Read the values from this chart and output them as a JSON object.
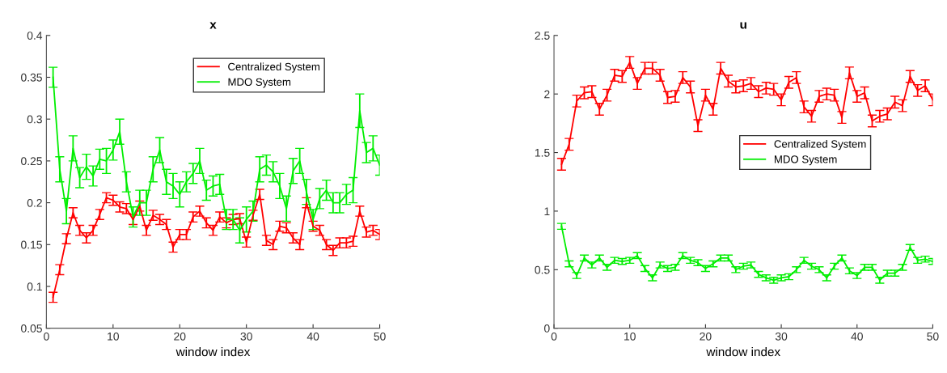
{
  "chart_data": [
    {
      "type": "line",
      "title": "x",
      "xlabel": "window index",
      "x": [
        1,
        2,
        3,
        4,
        5,
        6,
        7,
        8,
        9,
        10,
        11,
        12,
        13,
        14,
        15,
        16,
        17,
        18,
        19,
        20,
        21,
        22,
        23,
        24,
        25,
        26,
        27,
        28,
        29,
        30,
        31,
        32,
        33,
        34,
        35,
        36,
        37,
        38,
        39,
        40,
        41,
        42,
        43,
        44,
        45,
        46,
        47,
        48,
        49,
        50
      ],
      "xlim": [
        0,
        50
      ],
      "xticks": [
        0,
        10,
        20,
        30,
        40,
        50
      ],
      "ylim": [
        0.05,
        0.4
      ],
      "yticks": [
        0.05,
        0.1,
        0.15,
        0.2,
        0.25,
        0.3,
        0.35,
        0.4
      ],
      "grid": false,
      "legend": "top right",
      "marker": "none",
      "line_style": "solid",
      "series": [
        {
          "name": "Centralized System",
          "color": "#ff0000",
          "values": [
            0.087,
            0.12,
            0.157,
            0.188,
            0.167,
            0.158,
            0.167,
            0.186,
            0.206,
            0.203,
            0.195,
            0.193,
            0.18,
            0.196,
            0.167,
            0.185,
            0.18,
            0.174,
            0.147,
            0.162,
            0.162,
            0.183,
            0.19,
            0.176,
            0.167,
            0.183,
            0.176,
            0.18,
            0.181,
            0.153,
            0.185,
            0.21,
            0.155,
            0.15,
            0.172,
            0.17,
            0.158,
            0.15,
            0.2,
            0.172,
            0.167,
            0.15,
            0.143,
            0.152,
            0.152,
            0.154,
            0.19,
            0.165,
            0.167,
            0.162
          ],
          "errors": [
            0.006,
            0.006,
            0.006,
            0.006,
            0.006,
            0.006,
            0.006,
            0.006,
            0.006,
            0.006,
            0.006,
            0.006,
            0.006,
            0.006,
            0.006,
            0.006,
            0.006,
            0.006,
            0.006,
            0.006,
            0.006,
            0.006,
            0.006,
            0.006,
            0.006,
            0.006,
            0.006,
            0.006,
            0.006,
            0.006,
            0.006,
            0.006,
            0.006,
            0.006,
            0.006,
            0.006,
            0.006,
            0.006,
            0.006,
            0.006,
            0.006,
            0.006,
            0.006,
            0.006,
            0.006,
            0.006,
            0.006,
            0.006,
            0.006,
            0.006
          ]
        },
        {
          "name": "MDO System",
          "color": "#00ee00",
          "values": [
            0.35,
            0.24,
            0.19,
            0.265,
            0.23,
            0.243,
            0.232,
            0.252,
            0.25,
            0.263,
            0.285,
            0.225,
            0.183,
            0.2,
            0.2,
            0.24,
            0.263,
            0.225,
            0.22,
            0.21,
            0.225,
            0.235,
            0.25,
            0.215,
            0.22,
            0.222,
            0.18,
            0.18,
            0.167,
            0.18,
            0.19,
            0.24,
            0.245,
            0.237,
            0.22,
            0.193,
            0.238,
            0.25,
            0.213,
            0.18,
            0.205,
            0.215,
            0.2,
            0.2,
            0.21,
            0.215,
            0.31,
            0.26,
            0.265,
            0.245
          ],
          "errors": [
            0.012,
            0.015,
            0.015,
            0.015,
            0.012,
            0.015,
            0.012,
            0.012,
            0.015,
            0.012,
            0.015,
            0.012,
            0.012,
            0.015,
            0.015,
            0.015,
            0.015,
            0.015,
            0.015,
            0.015,
            0.012,
            0.012,
            0.015,
            0.012,
            0.012,
            0.012,
            0.012,
            0.012,
            0.015,
            0.015,
            0.012,
            0.015,
            0.012,
            0.012,
            0.015,
            0.015,
            0.015,
            0.015,
            0.015,
            0.012,
            0.012,
            0.012,
            0.012,
            0.012,
            0.012,
            0.015,
            0.02,
            0.012,
            0.015,
            0.012
          ]
        }
      ]
    },
    {
      "type": "line",
      "title": "u",
      "xlabel": "window index",
      "x": [
        1,
        2,
        3,
        4,
        5,
        6,
        7,
        8,
        9,
        10,
        11,
        12,
        13,
        14,
        15,
        16,
        17,
        18,
        19,
        20,
        21,
        22,
        23,
        24,
        25,
        26,
        27,
        28,
        29,
        30,
        31,
        32,
        33,
        34,
        35,
        36,
        37,
        38,
        39,
        40,
        41,
        42,
        43,
        44,
        45,
        46,
        47,
        48,
        49,
        50
      ],
      "xlim": [
        0,
        50
      ],
      "xticks": [
        0,
        10,
        20,
        30,
        40,
        50
      ],
      "ylim": [
        0,
        2.5
      ],
      "yticks": [
        0,
        0.5,
        1,
        1.5,
        2,
        2.5
      ],
      "grid": false,
      "legend": "right",
      "marker": "none",
      "line_style": "solid",
      "series": [
        {
          "name": "Centralized System",
          "color": "#ff0000",
          "values": [
            1.4,
            1.57,
            1.94,
            2.01,
            2.02,
            1.87,
            1.99,
            2.16,
            2.15,
            2.27,
            2.09,
            2.22,
            2.22,
            2.16,
            1.97,
            1.98,
            2.14,
            2.06,
            1.73,
            1.99,
            1.87,
            2.22,
            2.11,
            2.06,
            2.07,
            2.09,
            2.02,
            2.05,
            2.04,
            1.95,
            2.1,
            2.14,
            1.89,
            1.81,
            1.98,
            2.0,
            1.99,
            1.8,
            2.18,
            1.98,
            2.01,
            1.77,
            1.81,
            1.83,
            1.93,
            1.9,
            2.15,
            2.03,
            2.07,
            1.95
          ],
          "errors": [
            0.05,
            0.05,
            0.05,
            0.05,
            0.05,
            0.05,
            0.05,
            0.05,
            0.05,
            0.05,
            0.05,
            0.05,
            0.05,
            0.05,
            0.05,
            0.05,
            0.05,
            0.05,
            0.05,
            0.05,
            0.05,
            0.05,
            0.05,
            0.05,
            0.05,
            0.05,
            0.05,
            0.05,
            0.05,
            0.05,
            0.05,
            0.05,
            0.05,
            0.05,
            0.05,
            0.05,
            0.05,
            0.05,
            0.05,
            0.05,
            0.05,
            0.05,
            0.05,
            0.05,
            0.05,
            0.05,
            0.05,
            0.05,
            0.05,
            0.05
          ]
        },
        {
          "name": "MDO System",
          "color": "#00ee00",
          "values": [
            0.87,
            0.55,
            0.45,
            0.6,
            0.54,
            0.6,
            0.52,
            0.58,
            0.57,
            0.58,
            0.62,
            0.51,
            0.43,
            0.54,
            0.51,
            0.52,
            0.62,
            0.58,
            0.56,
            0.51,
            0.55,
            0.6,
            0.6,
            0.5,
            0.53,
            0.54,
            0.46,
            0.43,
            0.41,
            0.43,
            0.44,
            0.5,
            0.58,
            0.53,
            0.5,
            0.43,
            0.53,
            0.6,
            0.49,
            0.45,
            0.52,
            0.52,
            0.41,
            0.47,
            0.47,
            0.52,
            0.69,
            0.58,
            0.59,
            0.57
          ],
          "errors": [
            0.025,
            0.025,
            0.025,
            0.025,
            0.025,
            0.025,
            0.025,
            0.025,
            0.025,
            0.025,
            0.025,
            0.025,
            0.025,
            0.025,
            0.025,
            0.025,
            0.025,
            0.025,
            0.025,
            0.025,
            0.025,
            0.025,
            0.025,
            0.025,
            0.025,
            0.025,
            0.025,
            0.025,
            0.025,
            0.025,
            0.025,
            0.025,
            0.025,
            0.025,
            0.025,
            0.025,
            0.025,
            0.025,
            0.025,
            0.025,
            0.025,
            0.025,
            0.025,
            0.025,
            0.025,
            0.025,
            0.025,
            0.025,
            0.025,
            0.025
          ]
        }
      ]
    }
  ]
}
